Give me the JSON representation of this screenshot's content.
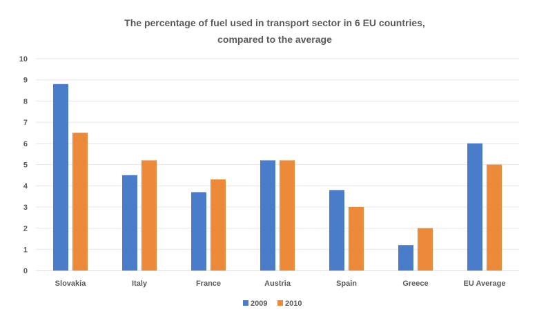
{
  "chart_data": {
    "type": "bar",
    "title_line1": "The percentage of fuel used in transport sector in 6 EU countries,",
    "title_line2": "compared to the average",
    "xlabel": "",
    "ylabel": "",
    "ylim": [
      0,
      10
    ],
    "yticks": [
      "0",
      "1",
      "2",
      "3",
      "4",
      "5",
      "6",
      "7",
      "8",
      "9",
      "10"
    ],
    "grid": true,
    "legend_position": "bottom",
    "categories": [
      "Slovakia",
      "Italy",
      "France",
      "Austria",
      "Spain",
      "Greece",
      "EU Average"
    ],
    "series": [
      {
        "name": "2009",
        "color": "#4a7cc9",
        "values": [
          8.8,
          4.5,
          3.7,
          5.2,
          3.8,
          1.2,
          6.0
        ]
      },
      {
        "name": "2010",
        "color": "#ed8a3a",
        "values": [
          6.5,
          5.2,
          4.3,
          5.2,
          3.0,
          2.0,
          5.0
        ]
      }
    ]
  }
}
